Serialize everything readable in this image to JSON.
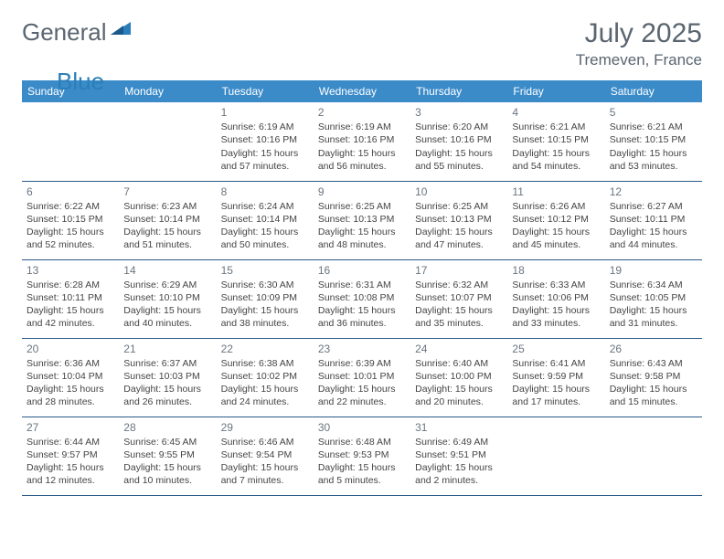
{
  "brand": {
    "part1": "General",
    "part2": "Blue"
  },
  "title": "July 2025",
  "location": "Tremeven, France",
  "colors": {
    "header_bg": "#3b8bc9",
    "header_text": "#ffffff",
    "border": "#2a5a8a",
    "text": "#444444",
    "muted": "#6a7580",
    "brand_gray": "#5a6570",
    "brand_blue": "#2a7fba"
  },
  "day_headers": [
    "Sunday",
    "Monday",
    "Tuesday",
    "Wednesday",
    "Thursday",
    "Friday",
    "Saturday"
  ],
  "weeks": [
    [
      {
        "n": "",
        "lines": []
      },
      {
        "n": "",
        "lines": []
      },
      {
        "n": "1",
        "lines": [
          "Sunrise: 6:19 AM",
          "Sunset: 10:16 PM",
          "Daylight: 15 hours",
          "and 57 minutes."
        ]
      },
      {
        "n": "2",
        "lines": [
          "Sunrise: 6:19 AM",
          "Sunset: 10:16 PM",
          "Daylight: 15 hours",
          "and 56 minutes."
        ]
      },
      {
        "n": "3",
        "lines": [
          "Sunrise: 6:20 AM",
          "Sunset: 10:16 PM",
          "Daylight: 15 hours",
          "and 55 minutes."
        ]
      },
      {
        "n": "4",
        "lines": [
          "Sunrise: 6:21 AM",
          "Sunset: 10:15 PM",
          "Daylight: 15 hours",
          "and 54 minutes."
        ]
      },
      {
        "n": "5",
        "lines": [
          "Sunrise: 6:21 AM",
          "Sunset: 10:15 PM",
          "Daylight: 15 hours",
          "and 53 minutes."
        ]
      }
    ],
    [
      {
        "n": "6",
        "lines": [
          "Sunrise: 6:22 AM",
          "Sunset: 10:15 PM",
          "Daylight: 15 hours",
          "and 52 minutes."
        ]
      },
      {
        "n": "7",
        "lines": [
          "Sunrise: 6:23 AM",
          "Sunset: 10:14 PM",
          "Daylight: 15 hours",
          "and 51 minutes."
        ]
      },
      {
        "n": "8",
        "lines": [
          "Sunrise: 6:24 AM",
          "Sunset: 10:14 PM",
          "Daylight: 15 hours",
          "and 50 minutes."
        ]
      },
      {
        "n": "9",
        "lines": [
          "Sunrise: 6:25 AM",
          "Sunset: 10:13 PM",
          "Daylight: 15 hours",
          "and 48 minutes."
        ]
      },
      {
        "n": "10",
        "lines": [
          "Sunrise: 6:25 AM",
          "Sunset: 10:13 PM",
          "Daylight: 15 hours",
          "and 47 minutes."
        ]
      },
      {
        "n": "11",
        "lines": [
          "Sunrise: 6:26 AM",
          "Sunset: 10:12 PM",
          "Daylight: 15 hours",
          "and 45 minutes."
        ]
      },
      {
        "n": "12",
        "lines": [
          "Sunrise: 6:27 AM",
          "Sunset: 10:11 PM",
          "Daylight: 15 hours",
          "and 44 minutes."
        ]
      }
    ],
    [
      {
        "n": "13",
        "lines": [
          "Sunrise: 6:28 AM",
          "Sunset: 10:11 PM",
          "Daylight: 15 hours",
          "and 42 minutes."
        ]
      },
      {
        "n": "14",
        "lines": [
          "Sunrise: 6:29 AM",
          "Sunset: 10:10 PM",
          "Daylight: 15 hours",
          "and 40 minutes."
        ]
      },
      {
        "n": "15",
        "lines": [
          "Sunrise: 6:30 AM",
          "Sunset: 10:09 PM",
          "Daylight: 15 hours",
          "and 38 minutes."
        ]
      },
      {
        "n": "16",
        "lines": [
          "Sunrise: 6:31 AM",
          "Sunset: 10:08 PM",
          "Daylight: 15 hours",
          "and 36 minutes."
        ]
      },
      {
        "n": "17",
        "lines": [
          "Sunrise: 6:32 AM",
          "Sunset: 10:07 PM",
          "Daylight: 15 hours",
          "and 35 minutes."
        ]
      },
      {
        "n": "18",
        "lines": [
          "Sunrise: 6:33 AM",
          "Sunset: 10:06 PM",
          "Daylight: 15 hours",
          "and 33 minutes."
        ]
      },
      {
        "n": "19",
        "lines": [
          "Sunrise: 6:34 AM",
          "Sunset: 10:05 PM",
          "Daylight: 15 hours",
          "and 31 minutes."
        ]
      }
    ],
    [
      {
        "n": "20",
        "lines": [
          "Sunrise: 6:36 AM",
          "Sunset: 10:04 PM",
          "Daylight: 15 hours",
          "and 28 minutes."
        ]
      },
      {
        "n": "21",
        "lines": [
          "Sunrise: 6:37 AM",
          "Sunset: 10:03 PM",
          "Daylight: 15 hours",
          "and 26 minutes."
        ]
      },
      {
        "n": "22",
        "lines": [
          "Sunrise: 6:38 AM",
          "Sunset: 10:02 PM",
          "Daylight: 15 hours",
          "and 24 minutes."
        ]
      },
      {
        "n": "23",
        "lines": [
          "Sunrise: 6:39 AM",
          "Sunset: 10:01 PM",
          "Daylight: 15 hours",
          "and 22 minutes."
        ]
      },
      {
        "n": "24",
        "lines": [
          "Sunrise: 6:40 AM",
          "Sunset: 10:00 PM",
          "Daylight: 15 hours",
          "and 20 minutes."
        ]
      },
      {
        "n": "25",
        "lines": [
          "Sunrise: 6:41 AM",
          "Sunset: 9:59 PM",
          "Daylight: 15 hours",
          "and 17 minutes."
        ]
      },
      {
        "n": "26",
        "lines": [
          "Sunrise: 6:43 AM",
          "Sunset: 9:58 PM",
          "Daylight: 15 hours",
          "and 15 minutes."
        ]
      }
    ],
    [
      {
        "n": "27",
        "lines": [
          "Sunrise: 6:44 AM",
          "Sunset: 9:57 PM",
          "Daylight: 15 hours",
          "and 12 minutes."
        ]
      },
      {
        "n": "28",
        "lines": [
          "Sunrise: 6:45 AM",
          "Sunset: 9:55 PM",
          "Daylight: 15 hours",
          "and 10 minutes."
        ]
      },
      {
        "n": "29",
        "lines": [
          "Sunrise: 6:46 AM",
          "Sunset: 9:54 PM",
          "Daylight: 15 hours",
          "and 7 minutes."
        ]
      },
      {
        "n": "30",
        "lines": [
          "Sunrise: 6:48 AM",
          "Sunset: 9:53 PM",
          "Daylight: 15 hours",
          "and 5 minutes."
        ]
      },
      {
        "n": "31",
        "lines": [
          "Sunrise: 6:49 AM",
          "Sunset: 9:51 PM",
          "Daylight: 15 hours",
          "and 2 minutes."
        ]
      },
      {
        "n": "",
        "lines": []
      },
      {
        "n": "",
        "lines": []
      }
    ]
  ]
}
